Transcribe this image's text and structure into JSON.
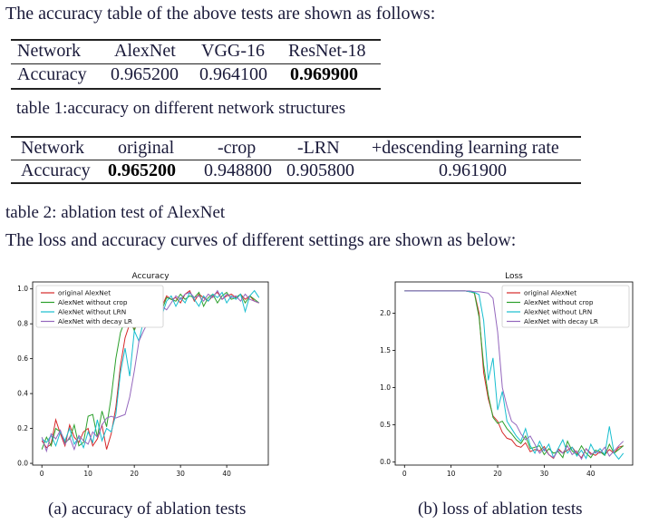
{
  "intro": "The accuracy table of the above tests are shown as follows:",
  "table1": {
    "headers": [
      "Network",
      "AlexNet",
      "VGG-16",
      "ResNet-18"
    ],
    "row": [
      "Accuracy",
      "0.965200",
      "0.964100",
      "0.969900"
    ],
    "caption": "table 1:accuracy on different network structures"
  },
  "table2": {
    "headers": [
      "Network",
      "original",
      "-crop",
      "-LRN",
      "+descending learning rate"
    ],
    "row": [
      "Accuracy",
      "0.965200",
      "0.948800",
      "0.905800",
      "0.961900"
    ],
    "caption": "table 2: ablation test of AlexNet"
  },
  "curves_intro": "The loss and accuracy curves of different settings are shown as below:",
  "captions": {
    "a": "(a)  accuracy of ablation tests",
    "b": "(b) loss of ablation tests"
  },
  "chart_data": [
    {
      "type": "line",
      "title": "Accuracy",
      "xlim": [
        -2,
        49
      ],
      "ylim": [
        -0.01,
        1.04
      ],
      "xticks": [
        0,
        10,
        20,
        30,
        40
      ],
      "yticks": [
        0.0,
        0.2,
        0.4,
        0.6,
        0.8,
        1.0
      ],
      "ytick_labels": [
        "0.0",
        "0.2",
        "0.4",
        "0.6",
        "0.8",
        "1.0"
      ],
      "legend_position": "upper-left",
      "series": [
        {
          "name": "original AlexNet",
          "color": "#d62728",
          "x": [
            0,
            1,
            2,
            3,
            4,
            5,
            6,
            7,
            8,
            9,
            10,
            11,
            12,
            13,
            14,
            15,
            16,
            17,
            18,
            19,
            20,
            21,
            22,
            23,
            24,
            25,
            26,
            27,
            28,
            29,
            30,
            31,
            32,
            33,
            34,
            35,
            36,
            37,
            38,
            39,
            40,
            41,
            42,
            43,
            44,
            45,
            46,
            47
          ],
          "y": [
            0.13,
            0.09,
            0.11,
            0.25,
            0.17,
            0.1,
            0.22,
            0.15,
            0.12,
            0.18,
            0.2,
            0.1,
            0.14,
            0.22,
            0.08,
            0.17,
            0.32,
            0.56,
            0.72,
            0.8,
            0.77,
            0.83,
            0.86,
            0.87,
            0.92,
            0.93,
            0.9,
            0.96,
            0.94,
            0.95,
            0.92,
            0.97,
            0.99,
            0.93,
            0.97,
            0.95,
            0.93,
            0.96,
            0.98,
            0.94,
            0.96,
            0.97,
            0.95,
            0.97,
            0.94,
            0.96,
            0.93,
            0.92
          ]
        },
        {
          "name": "AlexNet without crop",
          "color": "#2ca02c",
          "x": [
            0,
            1,
            2,
            3,
            4,
            5,
            6,
            7,
            8,
            9,
            10,
            11,
            12,
            13,
            14,
            15,
            16,
            17,
            18,
            19,
            20,
            21,
            22,
            23,
            24,
            25,
            26,
            27,
            28,
            29,
            30,
            31,
            32,
            33,
            34,
            35,
            36,
            37,
            38,
            39,
            40,
            41,
            42,
            43,
            44,
            45,
            46,
            47
          ],
          "y": [
            0.08,
            0.15,
            0.1,
            0.2,
            0.18,
            0.12,
            0.14,
            0.22,
            0.1,
            0.12,
            0.27,
            0.28,
            0.15,
            0.3,
            0.21,
            0.38,
            0.6,
            0.75,
            0.82,
            0.83,
            0.76,
            0.84,
            0.87,
            0.89,
            0.9,
            0.92,
            0.88,
            0.95,
            0.94,
            0.93,
            0.97,
            0.94,
            0.96,
            0.95,
            0.98,
            0.9,
            0.95,
            0.97,
            0.92,
            0.96,
            0.98,
            0.94,
            0.95,
            0.97,
            0.92,
            0.96,
            0.94,
            0.92
          ]
        },
        {
          "name": "AlexNet without LRN",
          "color": "#17becf",
          "x": [
            0,
            1,
            2,
            3,
            4,
            5,
            6,
            7,
            8,
            9,
            10,
            11,
            12,
            13,
            14,
            15,
            16,
            17,
            18,
            19,
            20,
            21,
            22,
            23,
            24,
            25,
            26,
            27,
            28,
            29,
            30,
            31,
            32,
            33,
            34,
            35,
            36,
            37,
            38,
            39,
            40,
            41,
            42,
            43,
            44,
            45,
            46,
            47
          ],
          "y": [
            0.14,
            0.12,
            0.16,
            0.1,
            0.18,
            0.13,
            0.2,
            0.11,
            0.15,
            0.09,
            0.18,
            0.12,
            0.25,
            0.13,
            0.2,
            0.18,
            0.28,
            0.52,
            0.66,
            0.5,
            0.76,
            0.7,
            0.82,
            0.86,
            0.9,
            0.92,
            0.85,
            0.93,
            0.96,
            0.9,
            0.95,
            0.92,
            0.98,
            0.94,
            0.9,
            0.96,
            0.93,
            0.97,
            0.95,
            0.98,
            0.92,
            0.96,
            0.94,
            0.97,
            0.87,
            0.96,
            0.99,
            0.95
          ]
        },
        {
          "name": "AlexNet with decay LR",
          "color": "#9467bd",
          "x": [
            0,
            1,
            2,
            3,
            4,
            5,
            6,
            7,
            8,
            9,
            10,
            11,
            12,
            13,
            14,
            15,
            16,
            17,
            18,
            19,
            20,
            21,
            22,
            23,
            24,
            25,
            26,
            27,
            28,
            29,
            30,
            31,
            32,
            33,
            34,
            35,
            36,
            37,
            38,
            39,
            40,
            41,
            42,
            43,
            44,
            45,
            46,
            47
          ],
          "y": [
            0.15,
            0.07,
            0.17,
            0.14,
            0.19,
            0.11,
            0.15,
            0.08,
            0.16,
            0.13,
            0.11,
            0.18,
            0.15,
            0.22,
            0.26,
            0.27,
            0.26,
            0.27,
            0.28,
            0.38,
            0.53,
            0.7,
            0.76,
            0.81,
            0.84,
            0.88,
            0.9,
            0.88,
            0.92,
            0.96,
            0.94,
            0.97,
            0.98,
            0.95,
            0.96,
            0.93,
            0.97,
            0.95,
            0.99,
            0.94,
            0.97,
            0.95,
            0.96,
            0.93,
            0.97,
            0.94,
            0.93,
            0.92
          ]
        }
      ]
    },
    {
      "type": "line",
      "title": "Loss",
      "xlim": [
        -2,
        49
      ],
      "ylim": [
        -0.04,
        2.42
      ],
      "xticks": [
        0,
        10,
        20,
        30,
        40
      ],
      "yticks": [
        0.0,
        0.5,
        1.0,
        1.5,
        2.0
      ],
      "ytick_labels": [
        "0.0",
        "0.5",
        "1.0",
        "1.5",
        "2.0"
      ],
      "legend_position": "upper-right",
      "series": [
        {
          "name": "original AlexNet",
          "color": "#d62728",
          "x": [
            0,
            1,
            2,
            3,
            4,
            5,
            6,
            7,
            8,
            9,
            10,
            11,
            12,
            13,
            14,
            15,
            16,
            17,
            18,
            19,
            20,
            21,
            22,
            23,
            24,
            25,
            26,
            27,
            28,
            29,
            30,
            31,
            32,
            33,
            34,
            35,
            36,
            37,
            38,
            39,
            40,
            41,
            42,
            43,
            44,
            45,
            46,
            47
          ],
          "y": [
            2.3,
            2.3,
            2.3,
            2.3,
            2.3,
            2.3,
            2.3,
            2.3,
            2.3,
            2.3,
            2.3,
            2.3,
            2.3,
            2.3,
            2.29,
            2.28,
            2.0,
            1.2,
            0.85,
            0.62,
            0.55,
            0.4,
            0.32,
            0.3,
            0.22,
            0.2,
            0.26,
            0.14,
            0.17,
            0.15,
            0.21,
            0.1,
            0.05,
            0.18,
            0.12,
            0.16,
            0.2,
            0.12,
            0.06,
            0.18,
            0.12,
            0.09,
            0.14,
            0.1,
            0.17,
            0.12,
            0.2,
            0.22
          ]
        },
        {
          "name": "AlexNet without crop",
          "color": "#2ca02c",
          "x": [
            0,
            1,
            2,
            3,
            4,
            5,
            6,
            7,
            8,
            9,
            10,
            11,
            12,
            13,
            14,
            15,
            16,
            17,
            18,
            19,
            20,
            21,
            22,
            23,
            24,
            25,
            26,
            27,
            28,
            29,
            30,
            31,
            32,
            33,
            34,
            35,
            36,
            37,
            38,
            39,
            40,
            41,
            42,
            43,
            44,
            45,
            46,
            47
          ],
          "y": [
            2.3,
            2.3,
            2.3,
            2.3,
            2.3,
            2.3,
            2.3,
            2.3,
            2.3,
            2.3,
            2.3,
            2.3,
            2.3,
            2.3,
            2.29,
            2.27,
            1.95,
            1.3,
            0.9,
            0.6,
            0.52,
            0.55,
            0.45,
            0.38,
            0.3,
            0.25,
            0.35,
            0.18,
            0.2,
            0.22,
            0.1,
            0.18,
            0.12,
            0.14,
            0.06,
            0.28,
            0.15,
            0.1,
            0.22,
            0.12,
            0.06,
            0.16,
            0.14,
            0.09,
            0.24,
            0.12,
            0.17,
            0.22
          ]
        },
        {
          "name": "AlexNet without LRN",
          "color": "#17becf",
          "x": [
            0,
            1,
            2,
            3,
            4,
            5,
            6,
            7,
            8,
            9,
            10,
            11,
            12,
            13,
            14,
            15,
            16,
            17,
            18,
            19,
            20,
            21,
            22,
            23,
            24,
            25,
            26,
            27,
            28,
            29,
            30,
            31,
            32,
            33,
            34,
            35,
            36,
            37,
            38,
            39,
            40,
            41,
            42,
            43,
            44,
            45,
            46,
            47
          ],
          "y": [
            2.3,
            2.3,
            2.3,
            2.3,
            2.3,
            2.3,
            2.3,
            2.3,
            2.3,
            2.3,
            2.3,
            2.3,
            2.3,
            2.3,
            2.29,
            2.28,
            2.25,
            1.9,
            1.1,
            1.4,
            0.7,
            0.95,
            0.55,
            0.45,
            0.35,
            0.28,
            0.45,
            0.22,
            0.12,
            0.28,
            0.15,
            0.24,
            0.06,
            0.18,
            0.3,
            0.12,
            0.2,
            0.08,
            0.16,
            0.05,
            0.24,
            0.12,
            0.18,
            0.1,
            0.48,
            0.12,
            0.04,
            0.12
          ]
        },
        {
          "name": "AlexNet with decay LR",
          "color": "#9467bd",
          "x": [
            0,
            1,
            2,
            3,
            4,
            5,
            6,
            7,
            8,
            9,
            10,
            11,
            12,
            13,
            14,
            15,
            16,
            17,
            18,
            19,
            20,
            21,
            22,
            23,
            24,
            25,
            26,
            27,
            28,
            29,
            30,
            31,
            32,
            33,
            34,
            35,
            36,
            37,
            38,
            39,
            40,
            41,
            42,
            43,
            44,
            45,
            46,
            47
          ],
          "y": [
            2.3,
            2.3,
            2.3,
            2.3,
            2.3,
            2.3,
            2.3,
            2.3,
            2.3,
            2.3,
            2.3,
            2.3,
            2.3,
            2.3,
            2.3,
            2.29,
            2.29,
            2.28,
            2.27,
            2.2,
            1.75,
            1.0,
            0.75,
            0.55,
            0.5,
            0.38,
            0.3,
            0.35,
            0.24,
            0.12,
            0.18,
            0.1,
            0.06,
            0.16,
            0.12,
            0.22,
            0.1,
            0.15,
            0.04,
            0.18,
            0.1,
            0.14,
            0.12,
            0.2,
            0.08,
            0.15,
            0.22,
            0.28
          ]
        }
      ]
    }
  ]
}
